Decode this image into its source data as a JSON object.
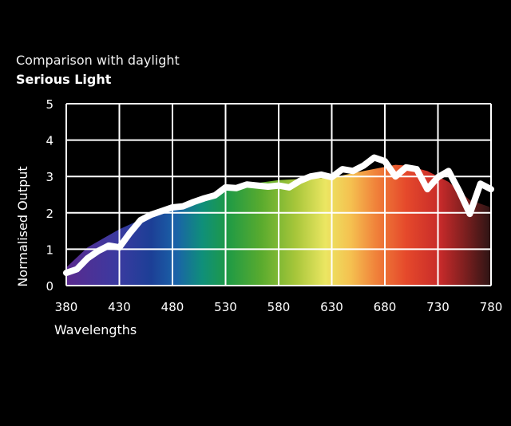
{
  "chart_data": {
    "type": "area",
    "title": "Comparison with daylight",
    "subtitle": "Serious Light",
    "xlabel": "Wavelengths",
    "ylabel": "Normalised Output",
    "xlim": [
      380,
      780
    ],
    "ylim": [
      0,
      5
    ],
    "x_ticks": [
      380,
      430,
      480,
      530,
      580,
      630,
      680,
      730,
      780
    ],
    "y_ticks": [
      0,
      1,
      2,
      3,
      4,
      5
    ],
    "grid": true,
    "legend": "none",
    "series": [
      {
        "style": "spectrum-filled-area",
        "x": [
          380,
          400,
          430,
          460,
          480,
          500,
          530,
          560,
          580,
          600,
          630,
          660,
          690,
          700,
          720,
          740,
          760,
          780
        ],
        "y": [
          0.5,
          1.05,
          1.55,
          1.95,
          2.15,
          2.35,
          2.62,
          2.82,
          2.9,
          2.93,
          2.97,
          3.15,
          3.32,
          3.3,
          3.15,
          2.85,
          2.35,
          2.15
        ]
      },
      {
        "style": "white-line",
        "x": [
          380,
          390,
          400,
          410,
          420,
          430,
          440,
          450,
          460,
          470,
          480,
          490,
          500,
          510,
          520,
          530,
          540,
          550,
          560,
          570,
          580,
          590,
          600,
          610,
          620,
          630,
          640,
          650,
          660,
          670,
          680,
          690,
          700,
          710,
          720,
          730,
          740,
          750,
          760,
          770,
          780
        ],
        "y": [
          0.35,
          0.45,
          0.75,
          0.95,
          1.1,
          1.05,
          1.45,
          1.8,
          1.95,
          2.05,
          2.15,
          2.18,
          2.3,
          2.4,
          2.48,
          2.7,
          2.68,
          2.78,
          2.75,
          2.72,
          2.75,
          2.7,
          2.88,
          3.0,
          3.05,
          2.98,
          3.2,
          3.15,
          3.3,
          3.52,
          3.42,
          3.0,
          3.25,
          3.2,
          2.65,
          2.98,
          3.15,
          2.6,
          1.97,
          2.8,
          2.65
        ]
      }
    ]
  }
}
